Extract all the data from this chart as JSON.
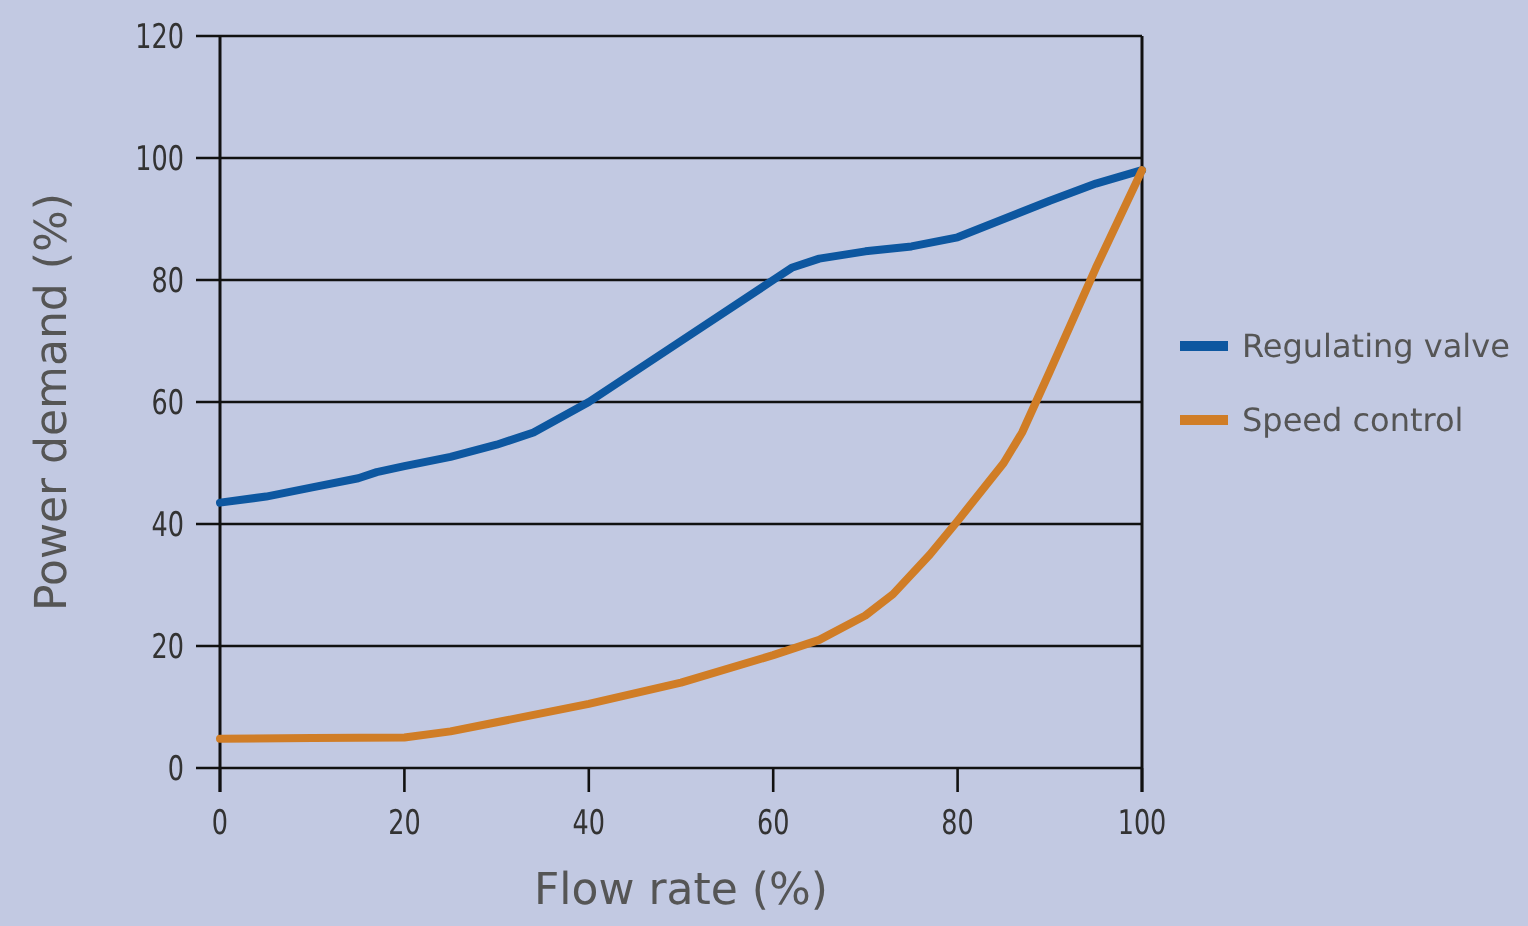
{
  "chart_data": {
    "type": "line",
    "xlabel": "Flow rate (%)",
    "ylabel": "Power demand (%)",
    "xlim": [
      0,
      100
    ],
    "ylim": [
      0,
      120
    ],
    "xticks": [
      0,
      20,
      40,
      60,
      80,
      100
    ],
    "yticks": [
      0,
      20,
      40,
      60,
      80,
      100,
      120
    ],
    "grid": "y",
    "legend": "right",
    "marker": "none",
    "line_style": "solid",
    "series": [
      {
        "name": "Regulating valve",
        "color": "#0d57a0",
        "x": [
          0,
          5,
          10,
          15,
          17,
          20,
          25,
          30,
          34,
          40,
          50,
          60,
          62,
          65,
          70,
          75,
          80,
          85,
          90,
          95,
          100
        ],
        "values": [
          43.5,
          44.5,
          46,
          47.5,
          48.5,
          49.5,
          51,
          53,
          55,
          60,
          70,
          80,
          82,
          83.5,
          84.7,
          85.5,
          87,
          90,
          93,
          95.8,
          98
        ]
      },
      {
        "name": "Speed control",
        "color": "#d07d26",
        "x": [
          0,
          10,
          20,
          25,
          30,
          40,
          50,
          60,
          65,
          70,
          73,
          77,
          80,
          85,
          87,
          90,
          95,
          100
        ],
        "values": [
          4.8,
          4.9,
          5,
          6,
          7.5,
          10.5,
          14,
          18.5,
          21,
          25,
          28.5,
          35,
          40.5,
          50,
          55,
          65,
          82,
          98
        ]
      }
    ]
  }
}
